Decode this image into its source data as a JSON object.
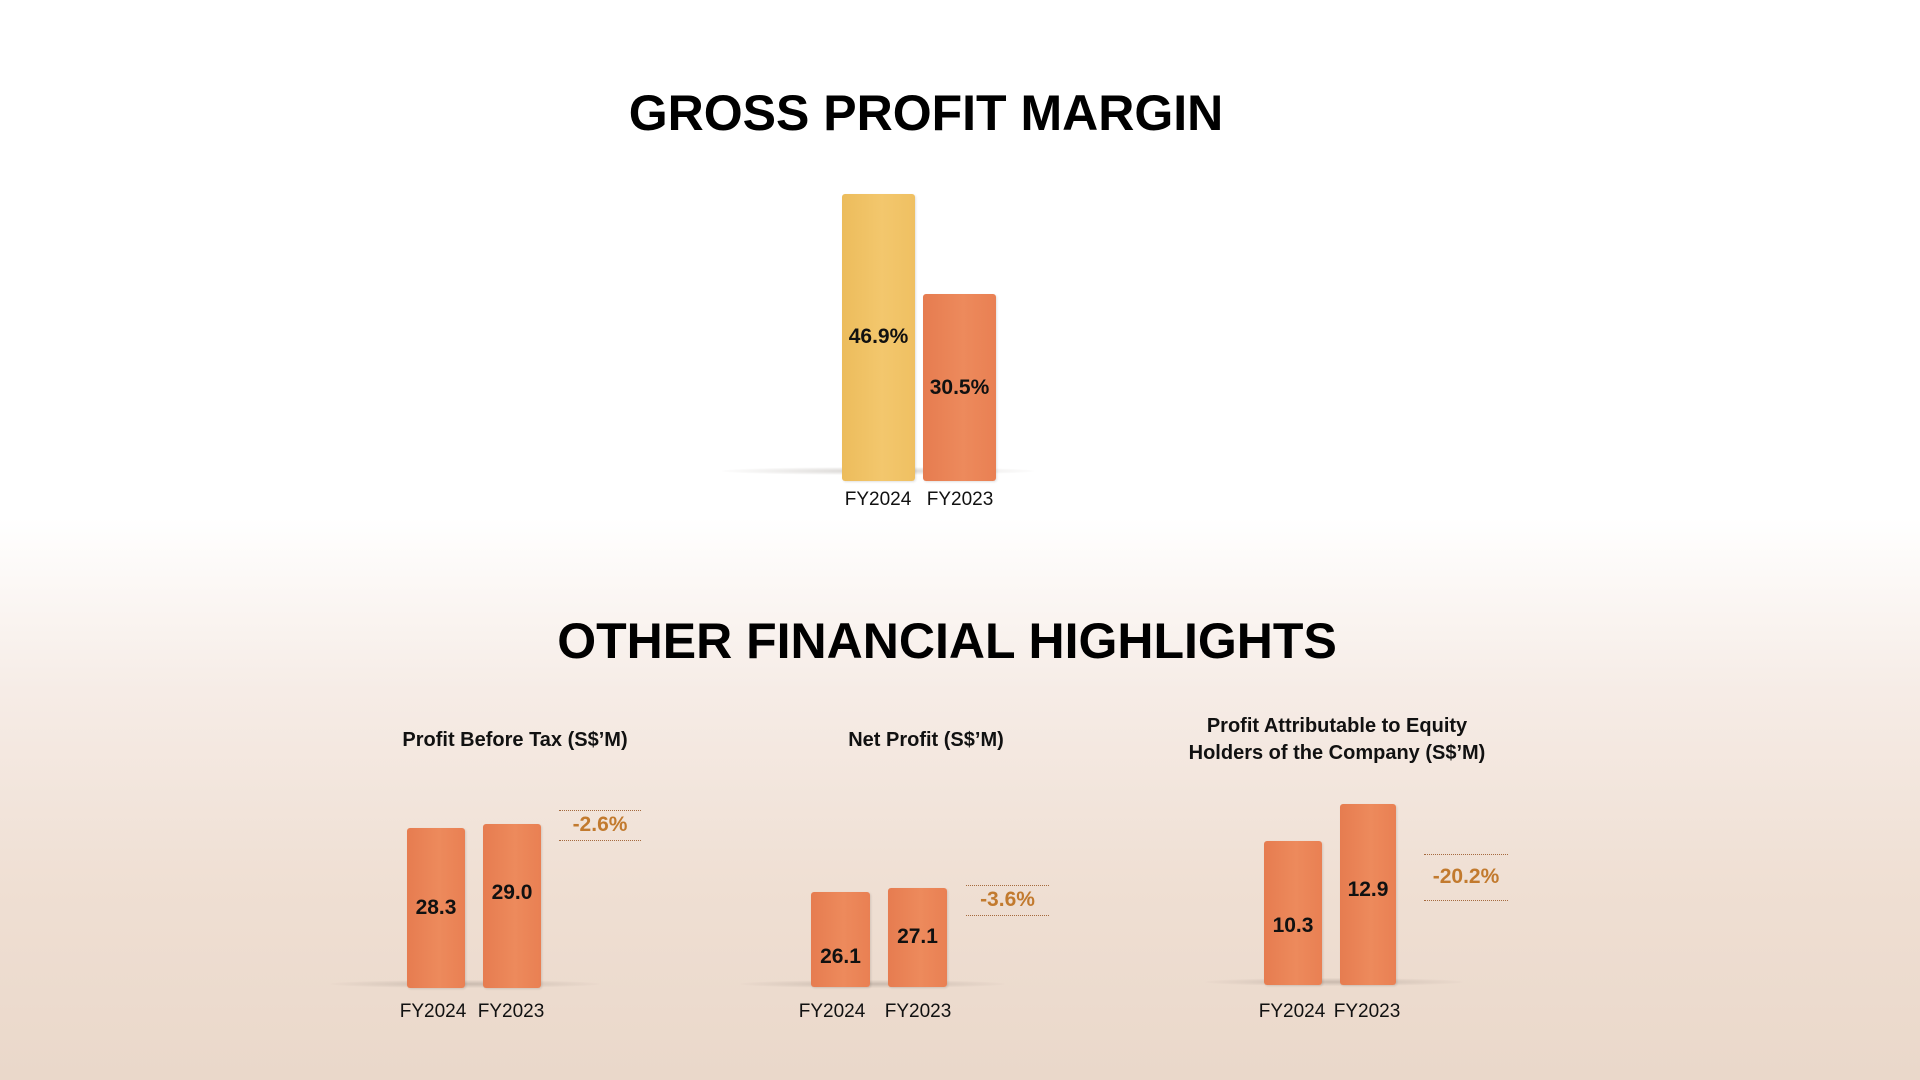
{
  "sections": {
    "gross_title": "GROSS PROFIT MARGIN",
    "other_title": "OTHER FINANCIAL HIGHLIGHTS"
  },
  "colors": {
    "fy2024_gpm": "#f1c265",
    "bar_orange": "#ea8456",
    "change_text": "#c27a2e"
  },
  "chart_data": [
    {
      "type": "bar",
      "title": "GROSS PROFIT MARGIN",
      "categories": [
        "FY2024",
        "FY2023"
      ],
      "values": [
        46.9,
        30.5
      ],
      "value_labels": [
        "46.9%",
        "30.5%"
      ],
      "unit": "%"
    },
    {
      "type": "bar",
      "title": "Profit Before Tax (S$’M)",
      "categories": [
        "FY2024",
        "FY2023"
      ],
      "values": [
        28.3,
        29.0
      ],
      "value_labels": [
        "28.3",
        "29.0"
      ],
      "change": "-2.6%"
    },
    {
      "type": "bar",
      "title": "Net Profit (S$’M)",
      "categories": [
        "FY2024",
        "FY2023"
      ],
      "values": [
        26.1,
        27.1
      ],
      "value_labels": [
        "26.1",
        "27.1"
      ],
      "change": "-3.6%"
    },
    {
      "type": "bar",
      "title_lines": [
        "Profit Attributable to Equity",
        "Holders of the Company (S$’M)"
      ],
      "categories": [
        "FY2024",
        "FY2023"
      ],
      "values": [
        10.3,
        12.9
      ],
      "value_labels": [
        "10.3",
        "12.9"
      ],
      "change": "-20.2%"
    }
  ]
}
